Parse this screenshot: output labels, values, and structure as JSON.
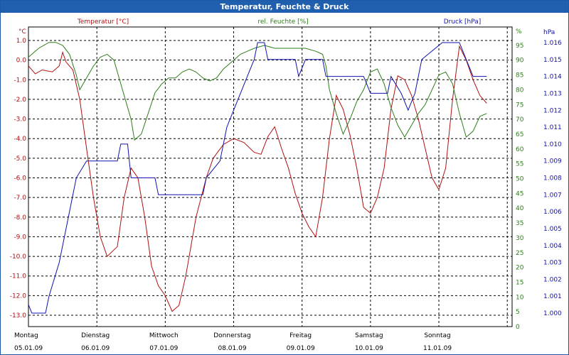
{
  "window": {
    "title": "Temperatur, Feuchte & Druck"
  },
  "colors": {
    "temperature": "#b01010",
    "humidity": "#2e7d1a",
    "pressure": "#1010b0",
    "axis": "#000000",
    "grid": "#000000"
  },
  "chart_data": {
    "type": "line",
    "title": "Temperatur, Feuchte & Druck",
    "grid": true,
    "x": {
      "range_days": [
        0,
        7
      ],
      "ticks": [
        {
          "day": "Montag",
          "date": "05.01.09"
        },
        {
          "day": "Dienstag",
          "date": "06.01.09"
        },
        {
          "day": "Mittwoch",
          "date": "07.01.09"
        },
        {
          "day": "Donnerstag",
          "date": "08.01.09"
        },
        {
          "day": "Freitag",
          "date": "09.01.09"
        },
        {
          "day": "Samstag",
          "date": "10.01.09"
        },
        {
          "day": "Sonntag",
          "date": "11.01.09"
        }
      ]
    },
    "axes": {
      "temperature": {
        "label": "Temperatur [°C]",
        "unit": "°C",
        "range": [
          -13.0,
          1.0
        ],
        "ticks": [
          "1.0",
          "0.0",
          "-1.0",
          "-2.0",
          "-3.0",
          "-4.0",
          "-5.0",
          "-6.0",
          "-7.0",
          "-8.0",
          "-9.0",
          "-10.0",
          "-11.0",
          "-12.0",
          "-13.0"
        ]
      },
      "humidity": {
        "label": "rel. Feuchte [%]",
        "unit": "%",
        "range": [
          0,
          100
        ],
        "ticks": [
          "95",
          "90",
          "85",
          "80",
          "75",
          "70",
          "65",
          "60",
          "55",
          "50",
          "45",
          "40",
          "35",
          "30",
          "25",
          "20",
          "15",
          "10",
          "5",
          "0"
        ],
        "top_label": "%"
      },
      "pressure": {
        "label": "Druck [hPa]",
        "unit": "hPa",
        "range": [
          0.9995,
          1.0165
        ],
        "ticks": [
          "1.016",
          "1.015",
          "1.014",
          "1.013",
          "1.012",
          "1.011",
          "1.010",
          "1.009",
          "1.008",
          "1.007",
          "1.006",
          "1.005",
          "1.004",
          "1.003",
          "1.002",
          "1.001",
          "1.000"
        ]
      }
    },
    "series": [
      {
        "name": "Temperatur [°C]",
        "axis": "temperature",
        "points": [
          [
            0,
            -0.3
          ],
          [
            0.1,
            -0.7
          ],
          [
            0.2,
            -0.5
          ],
          [
            0.35,
            -0.6
          ],
          [
            0.45,
            -0.3
          ],
          [
            0.5,
            0.4
          ],
          [
            0.55,
            -0.1
          ],
          [
            0.65,
            -0.5
          ],
          [
            0.75,
            -2.0
          ],
          [
            0.85,
            -4.5
          ],
          [
            0.95,
            -7.0
          ],
          [
            1.05,
            -9.0
          ],
          [
            1.15,
            -10.0
          ],
          [
            1.3,
            -9.5
          ],
          [
            1.4,
            -7.0
          ],
          [
            1.5,
            -5.5
          ],
          [
            1.6,
            -6.0
          ],
          [
            1.7,
            -8.0
          ],
          [
            1.8,
            -10.5
          ],
          [
            1.9,
            -11.5
          ],
          [
            2.0,
            -12.0
          ],
          [
            2.1,
            -12.8
          ],
          [
            2.2,
            -12.5
          ],
          [
            2.3,
            -11.0
          ],
          [
            2.45,
            -8.0
          ],
          [
            2.6,
            -6.0
          ],
          [
            2.7,
            -5.0
          ],
          [
            2.85,
            -4.3
          ],
          [
            3.0,
            -4.0
          ],
          [
            3.15,
            -4.2
          ],
          [
            3.3,
            -4.7
          ],
          [
            3.4,
            -4.8
          ],
          [
            3.5,
            -3.9
          ],
          [
            3.6,
            -3.4
          ],
          [
            3.7,
            -4.5
          ],
          [
            3.8,
            -5.5
          ],
          [
            3.9,
            -6.8
          ],
          [
            4.0,
            -7.8
          ],
          [
            4.1,
            -8.5
          ],
          [
            4.2,
            -9.0
          ],
          [
            4.3,
            -7.0
          ],
          [
            4.4,
            -4.0
          ],
          [
            4.5,
            -1.8
          ],
          [
            4.6,
            -2.5
          ],
          [
            4.7,
            -3.8
          ],
          [
            4.8,
            -5.5
          ],
          [
            4.9,
            -7.5
          ],
          [
            5.0,
            -7.8
          ],
          [
            5.1,
            -7.0
          ],
          [
            5.2,
            -5.5
          ],
          [
            5.3,
            -2.5
          ],
          [
            5.4,
            -0.8
          ],
          [
            5.5,
            -1.0
          ],
          [
            5.6,
            -1.8
          ],
          [
            5.7,
            -3.0
          ],
          [
            5.8,
            -4.5
          ],
          [
            5.9,
            -6.0
          ],
          [
            6.0,
            -6.6
          ],
          [
            6.1,
            -5.5
          ],
          [
            6.2,
            -2.0
          ],
          [
            6.3,
            0.7
          ],
          [
            6.4,
            0.0
          ],
          [
            6.5,
            -1.0
          ],
          [
            6.6,
            -1.8
          ],
          [
            6.7,
            -2.2
          ]
        ]
      },
      {
        "name": "rel. Feuchte [%]",
        "axis": "humidity",
        "points": [
          [
            0,
            91
          ],
          [
            0.15,
            94
          ],
          [
            0.3,
            96
          ],
          [
            0.4,
            96
          ],
          [
            0.5,
            95
          ],
          [
            0.6,
            92
          ],
          [
            0.7,
            85
          ],
          [
            0.75,
            80
          ],
          [
            0.85,
            84
          ],
          [
            0.95,
            88
          ],
          [
            1.05,
            91
          ],
          [
            1.15,
            92
          ],
          [
            1.25,
            90
          ],
          [
            1.3,
            86
          ],
          [
            1.4,
            78
          ],
          [
            1.5,
            70
          ],
          [
            1.55,
            63
          ],
          [
            1.65,
            65
          ],
          [
            1.75,
            72
          ],
          [
            1.85,
            79
          ],
          [
            1.95,
            82
          ],
          [
            2.05,
            84
          ],
          [
            2.15,
            84
          ],
          [
            2.25,
            86
          ],
          [
            2.35,
            87
          ],
          [
            2.45,
            86
          ],
          [
            2.55,
            84
          ],
          [
            2.65,
            83
          ],
          [
            2.75,
            84
          ],
          [
            2.85,
            87
          ],
          [
            3.0,
            90
          ],
          [
            3.1,
            92
          ],
          [
            3.2,
            93
          ],
          [
            3.3,
            94
          ],
          [
            3.45,
            95
          ],
          [
            3.6,
            94
          ],
          [
            3.75,
            94
          ],
          [
            3.9,
            94
          ],
          [
            4.05,
            94
          ],
          [
            4.2,
            93
          ],
          [
            4.3,
            92
          ],
          [
            4.35,
            88
          ],
          [
            4.4,
            80
          ],
          [
            4.5,
            72
          ],
          [
            4.6,
            65
          ],
          [
            4.7,
            70
          ],
          [
            4.8,
            76
          ],
          [
            4.9,
            80
          ],
          [
            5.0,
            86
          ],
          [
            5.1,
            87
          ],
          [
            5.2,
            82
          ],
          [
            5.3,
            74
          ],
          [
            5.4,
            68
          ],
          [
            5.5,
            64
          ],
          [
            5.6,
            68
          ],
          [
            5.7,
            72
          ],
          [
            5.8,
            75
          ],
          [
            5.9,
            80
          ],
          [
            6.0,
            85
          ],
          [
            6.1,
            86
          ],
          [
            6.2,
            82
          ],
          [
            6.3,
            72
          ],
          [
            6.4,
            64
          ],
          [
            6.5,
            66
          ],
          [
            6.6,
            71
          ],
          [
            6.7,
            72
          ]
        ]
      },
      {
        "name": "Druck [hPa]",
        "axis": "pressure",
        "points": [
          [
            0,
            1.0005
          ],
          [
            0.05,
            1.0
          ],
          [
            0.25,
            1.0
          ],
          [
            0.3,
            1.001
          ],
          [
            0.45,
            1.003
          ],
          [
            0.6,
            1.006
          ],
          [
            0.7,
            1.008
          ],
          [
            0.85,
            1.009
          ],
          [
            1.3,
            1.009
          ],
          [
            1.35,
            1.01
          ],
          [
            1.45,
            1.01
          ],
          [
            1.5,
            1.008
          ],
          [
            1.85,
            1.008
          ],
          [
            1.9,
            1.007
          ],
          [
            2.0,
            1.007
          ],
          [
            2.1,
            1.007
          ],
          [
            2.55,
            1.007
          ],
          [
            2.6,
            1.008
          ],
          [
            2.8,
            1.009
          ],
          [
            2.9,
            1.011
          ],
          [
            3.0,
            1.012
          ],
          [
            3.1,
            1.013
          ],
          [
            3.2,
            1.014
          ],
          [
            3.3,
            1.015
          ],
          [
            3.35,
            1.016
          ],
          [
            3.45,
            1.016
          ],
          [
            3.5,
            1.015
          ],
          [
            3.9,
            1.015
          ],
          [
            3.95,
            1.014
          ],
          [
            4.05,
            1.015
          ],
          [
            4.3,
            1.015
          ],
          [
            4.35,
            1.014
          ],
          [
            4.9,
            1.014
          ],
          [
            5.0,
            1.013
          ],
          [
            5.25,
            1.013
          ],
          [
            5.3,
            1.014
          ],
          [
            5.45,
            1.013
          ],
          [
            5.55,
            1.012
          ],
          [
            5.65,
            1.013
          ],
          [
            5.75,
            1.015
          ],
          [
            6.05,
            1.016
          ],
          [
            6.3,
            1.016
          ],
          [
            6.4,
            1.015
          ],
          [
            6.5,
            1.014
          ],
          [
            6.7,
            1.014
          ]
        ]
      }
    ]
  }
}
